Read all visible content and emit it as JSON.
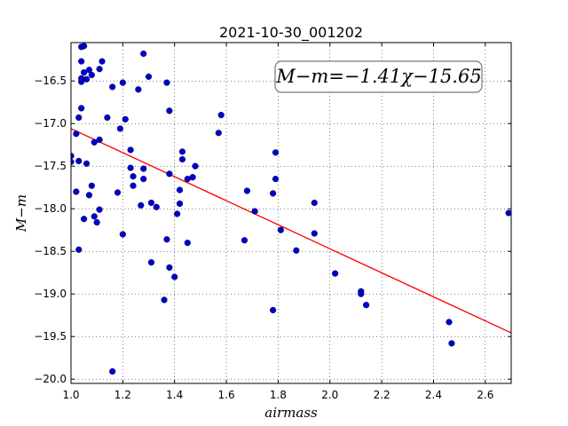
{
  "chart_data": {
    "type": "scatter",
    "title": "2021-10-30_001202",
    "xlabel": "airmass",
    "ylabel": "M−m",
    "xlim": [
      1.0,
      2.7
    ],
    "ylim": [
      -20.05,
      -16.05
    ],
    "y_inverted": true,
    "grid": true,
    "x_ticks": [
      "1.0",
      "1.2",
      "1.4",
      "1.6",
      "1.8",
      "2.0",
      "2.2",
      "2.4",
      "2.6"
    ],
    "y_ticks": [
      "−16.5",
      "−17.0",
      "−17.5",
      "−18.0",
      "−18.5",
      "−19.0",
      "−19.5",
      "−20.0"
    ],
    "annotation": "M−m=−1.41χ−15.65",
    "fit": {
      "slope": -1.41,
      "intercept": -15.65,
      "color": "#ff0000"
    },
    "point_color": "#0000cc",
    "points": [
      [
        1.0,
        -17.38
      ],
      [
        1.0,
        -17.45
      ],
      [
        1.02,
        -17.12
      ],
      [
        1.02,
        -17.8
      ],
      [
        1.03,
        -16.93
      ],
      [
        1.03,
        -17.44
      ],
      [
        1.03,
        -18.48
      ],
      [
        1.04,
        -16.1
      ],
      [
        1.04,
        -16.27
      ],
      [
        1.04,
        -16.47
      ],
      [
        1.04,
        -16.51
      ],
      [
        1.04,
        -16.82
      ],
      [
        1.05,
        -16.09
      ],
      [
        1.05,
        -16.4
      ],
      [
        1.05,
        -18.12
      ],
      [
        1.06,
        -16.48
      ],
      [
        1.06,
        -17.47
      ],
      [
        1.07,
        -16.37
      ],
      [
        1.07,
        -17.84
      ],
      [
        1.08,
        -16.43
      ],
      [
        1.08,
        -17.73
      ],
      [
        1.09,
        -17.22
      ],
      [
        1.09,
        -18.09
      ],
      [
        1.1,
        -18.16
      ],
      [
        1.11,
        -17.19
      ],
      [
        1.11,
        -18.01
      ],
      [
        1.11,
        -16.36
      ],
      [
        1.12,
        -16.27
      ],
      [
        1.14,
        -16.93
      ],
      [
        1.16,
        -16.57
      ],
      [
        1.16,
        -19.91
      ],
      [
        1.18,
        -17.81
      ],
      [
        1.19,
        -17.06
      ],
      [
        1.2,
        -16.52
      ],
      [
        1.2,
        -18.3
      ],
      [
        1.21,
        -16.95
      ],
      [
        1.23,
        -17.31
      ],
      [
        1.23,
        -17.52
      ],
      [
        1.24,
        -17.62
      ],
      [
        1.24,
        -17.73
      ],
      [
        1.26,
        -16.6
      ],
      [
        1.27,
        -17.96
      ],
      [
        1.28,
        -16.18
      ],
      [
        1.28,
        -17.53
      ],
      [
        1.28,
        -17.65
      ],
      [
        1.3,
        -16.45
      ],
      [
        1.31,
        -18.63
      ],
      [
        1.31,
        -17.93
      ],
      [
        1.33,
        -17.98
      ],
      [
        1.36,
        -19.07
      ],
      [
        1.37,
        -16.52
      ],
      [
        1.37,
        -18.36
      ],
      [
        1.38,
        -16.85
      ],
      [
        1.38,
        -17.59
      ],
      [
        1.38,
        -18.69
      ],
      [
        1.4,
        -18.8
      ],
      [
        1.41,
        -18.06
      ],
      [
        1.42,
        -17.78
      ],
      [
        1.42,
        -17.94
      ],
      [
        1.43,
        -17.33
      ],
      [
        1.43,
        -17.42
      ],
      [
        1.45,
        -17.65
      ],
      [
        1.45,
        -18.4
      ],
      [
        1.47,
        -17.63
      ],
      [
        1.48,
        -17.5
      ],
      [
        1.57,
        -17.11
      ],
      [
        1.58,
        -16.9
      ],
      [
        1.67,
        -18.37
      ],
      [
        1.68,
        -17.79
      ],
      [
        1.71,
        -18.03
      ],
      [
        1.78,
        -17.82
      ],
      [
        1.78,
        -19.19
      ],
      [
        1.79,
        -17.34
      ],
      [
        1.79,
        -17.65
      ],
      [
        1.81,
        -18.25
      ],
      [
        1.87,
        -18.49
      ],
      [
        1.94,
        -18.29
      ],
      [
        1.94,
        -17.93
      ],
      [
        2.02,
        -18.76
      ],
      [
        2.12,
        -18.97
      ],
      [
        2.12,
        -19.0
      ],
      [
        2.14,
        -19.13
      ],
      [
        2.46,
        -19.33
      ],
      [
        2.47,
        -19.58
      ],
      [
        2.69,
        -18.05
      ]
    ]
  }
}
